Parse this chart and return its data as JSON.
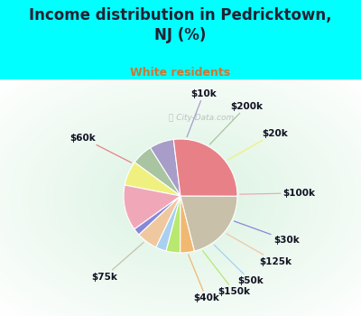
{
  "title": "Income distribution in Pedricktown,\nNJ (%)",
  "subtitle": "White residents",
  "outer_bg": "#00ffff",
  "inner_bg": "#d8f0e8",
  "watermark": "ⓘ City-Data.com",
  "labels": [
    "$10k",
    "$200k",
    "$20k",
    "$100k",
    "$30k",
    "$125k",
    "$50k",
    "$150k",
    "$40k",
    "$75k",
    "$60k"
  ],
  "sizes": [
    7,
    6,
    7,
    13,
    2,
    6,
    3,
    4,
    4,
    21,
    27
  ],
  "colors": [
    "#a89cc8",
    "#a8c4a0",
    "#f0f080",
    "#f0a8b8",
    "#8888d8",
    "#f0c8a0",
    "#a8d0f0",
    "#b8e870",
    "#f0b870",
    "#c8c0a8",
    "#e88088"
  ],
  "label_fontsize": 7.5,
  "title_fontsize": 12,
  "subtitle_fontsize": 9,
  "title_color": "#222233",
  "subtitle_color": "#cc7733",
  "startangle": 97
}
